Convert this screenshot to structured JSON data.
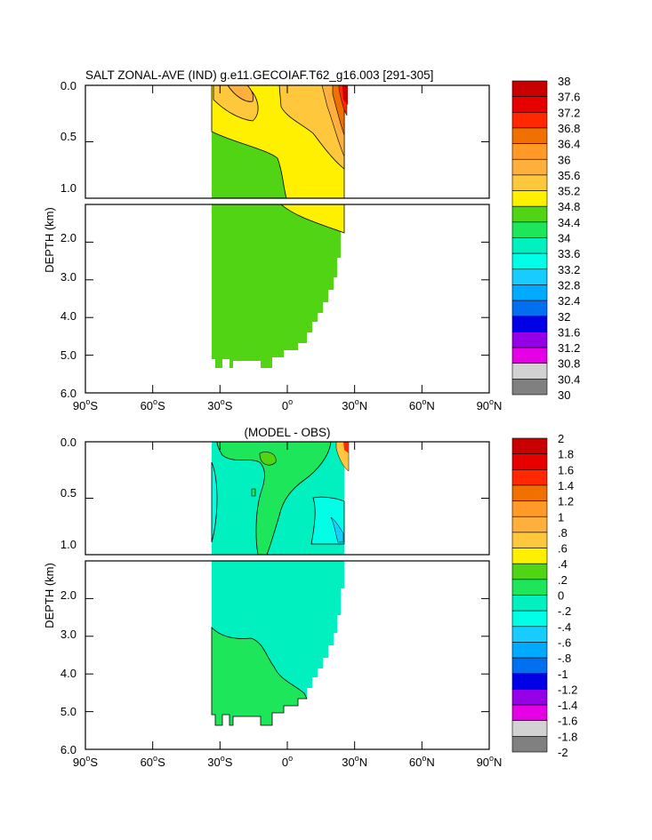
{
  "chart_data": [
    {
      "type": "heatmap",
      "title": "SALT ZONAL-AVE (IND) g.e11.GECOIAF.T62_g16.003 [291-305]",
      "ylabel": "DEPTH (km)",
      "xlabel": "",
      "xlim": [
        -90,
        90
      ],
      "ylim": [
        6.0,
        0.0
      ],
      "split_depth_km": 1.0,
      "x_ticks": [
        {
          "value": -90,
          "num": "90",
          "hemi": "S"
        },
        {
          "value": -60,
          "num": "60",
          "hemi": "S"
        },
        {
          "value": -30,
          "num": "30",
          "hemi": "S"
        },
        {
          "value": 0,
          "num": "0",
          "hemi": ""
        },
        {
          "value": 30,
          "num": "30",
          "hemi": "N"
        },
        {
          "value": 60,
          "num": "60",
          "hemi": "N"
        },
        {
          "value": 90,
          "num": "90",
          "hemi": "N"
        }
      ],
      "y_ticks_upper": [
        "0.0",
        "0.5",
        "1.0"
      ],
      "y_ticks_lower": [
        "2.0",
        "3.0",
        "4.0",
        "5.0",
        "6.0"
      ],
      "colorbar": {
        "labels": [
          "38",
          "37.6",
          "37.2",
          "36.8",
          "36.4",
          "36",
          "35.6",
          "35.2",
          "34.8",
          "34.4",
          "34",
          "33.6",
          "33.2",
          "32.8",
          "32.4",
          "32",
          "31.6",
          "31.2",
          "30.8",
          "30.4",
          "30"
        ],
        "colors": [
          "#c80000",
          "#e60000",
          "#ff2800",
          "#f07000",
          "#ff9a28",
          "#ffb03c",
          "#ffc83c",
          "#fff000",
          "#50d414",
          "#1ee65a",
          "#00f0c0",
          "#00ffe6",
          "#18ccff",
          "#00aaff",
          "#0070f0",
          "#0000e6",
          "#9600e6",
          "#e600e6",
          "#d2d2d2",
          "#808080"
        ]
      },
      "regions": [
        {
          "value_range": [
            34.4,
            34.8
          ],
          "description_color": "#50d414",
          "lat_range": [
            -34,
            0
          ]
        },
        {
          "value_range": [
            34.8,
            35.2
          ],
          "description_color": "#fff000",
          "lat_range": [
            -34,
            25
          ]
        },
        {
          "value_range": [
            35.6,
            38.0
          ],
          "description_color": "#ff2800",
          "lat_range": [
            22,
            26
          ]
        }
      ]
    },
    {
      "type": "heatmap",
      "title": "(MODEL - OBS)",
      "ylabel": "DEPTH (km)",
      "xlabel": "",
      "xlim": [
        -90,
        90
      ],
      "ylim": [
        6.0,
        0.0
      ],
      "split_depth_km": 1.0,
      "x_ticks": [
        {
          "value": -90,
          "num": "90",
          "hemi": "S"
        },
        {
          "value": -60,
          "num": "60",
          "hemi": "S"
        },
        {
          "value": -30,
          "num": "30",
          "hemi": "S"
        },
        {
          "value": 0,
          "num": "0",
          "hemi": ""
        },
        {
          "value": 30,
          "num": "30",
          "hemi": "N"
        },
        {
          "value": 60,
          "num": "60",
          "hemi": "N"
        },
        {
          "value": 90,
          "num": "90",
          "hemi": "N"
        }
      ],
      "y_ticks_upper": [
        "0.0",
        "0.5",
        "1.0"
      ],
      "y_ticks_lower": [
        "2.0",
        "3.0",
        "4.0",
        "5.0",
        "6.0"
      ],
      "colorbar": {
        "labels": [
          "2",
          "1.8",
          "1.6",
          "1.4",
          "1.2",
          "1",
          ".8",
          ".6",
          ".4",
          ".2",
          "0",
          "-.2",
          "-.4",
          "-.6",
          "-.8",
          "-1",
          "-1.2",
          "-1.4",
          "-1.6",
          "-1.8",
          "-2"
        ],
        "colors": [
          "#c80000",
          "#e60000",
          "#ff2800",
          "#f07000",
          "#ff9a28",
          "#ffb03c",
          "#ffc83c",
          "#fff000",
          "#50d414",
          "#1ee65a",
          "#00f0c0",
          "#00ffe6",
          "#18ccff",
          "#00aaff",
          "#0070f0",
          "#0000e6",
          "#9600e6",
          "#e600e6",
          "#d2d2d2",
          "#808080"
        ]
      },
      "regions": [
        {
          "value_range": [
            -0.2,
            0.0
          ],
          "description_color": "#00f0c0",
          "lat_range": [
            -34,
            25
          ]
        },
        {
          "value_range": [
            0.0,
            0.2
          ],
          "description_color": "#1ee65a",
          "lat_range": [
            -34,
            10
          ]
        },
        {
          "value_range": [
            -0.4,
            -0.2
          ],
          "description_color": "#00ffe6",
          "lat_range": [
            -34,
            25
          ]
        }
      ]
    }
  ]
}
